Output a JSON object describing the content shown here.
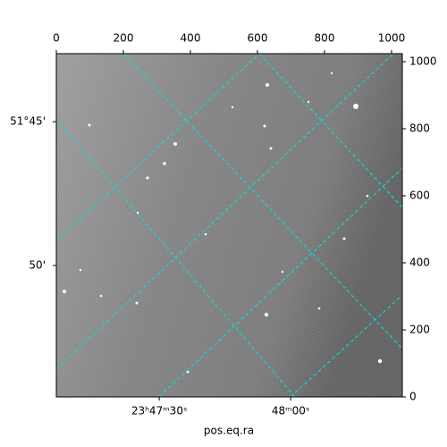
{
  "chart_data": {
    "type": "image",
    "xlabel": "pos.eq.ra",
    "xlim": [
      0,
      1032
    ],
    "ylim": [
      0,
      1024
    ],
    "xticks": [
      0,
      200,
      400,
      600,
      800,
      1000
    ],
    "yticks": [
      0,
      200,
      400,
      600,
      800,
      1000
    ],
    "ra_ticks": [
      {
        "value": 307,
        "label": "23ʰ47ᵐ30ˢ"
      },
      {
        "value": 699,
        "label": "48ᵐ00ˢ"
      }
    ],
    "dec_ticks": [
      {
        "value": 821,
        "label": "51°45'"
      },
      {
        "value": 392,
        "label": "50'"
      }
    ],
    "grid_color": "#00e5e5"
  }
}
